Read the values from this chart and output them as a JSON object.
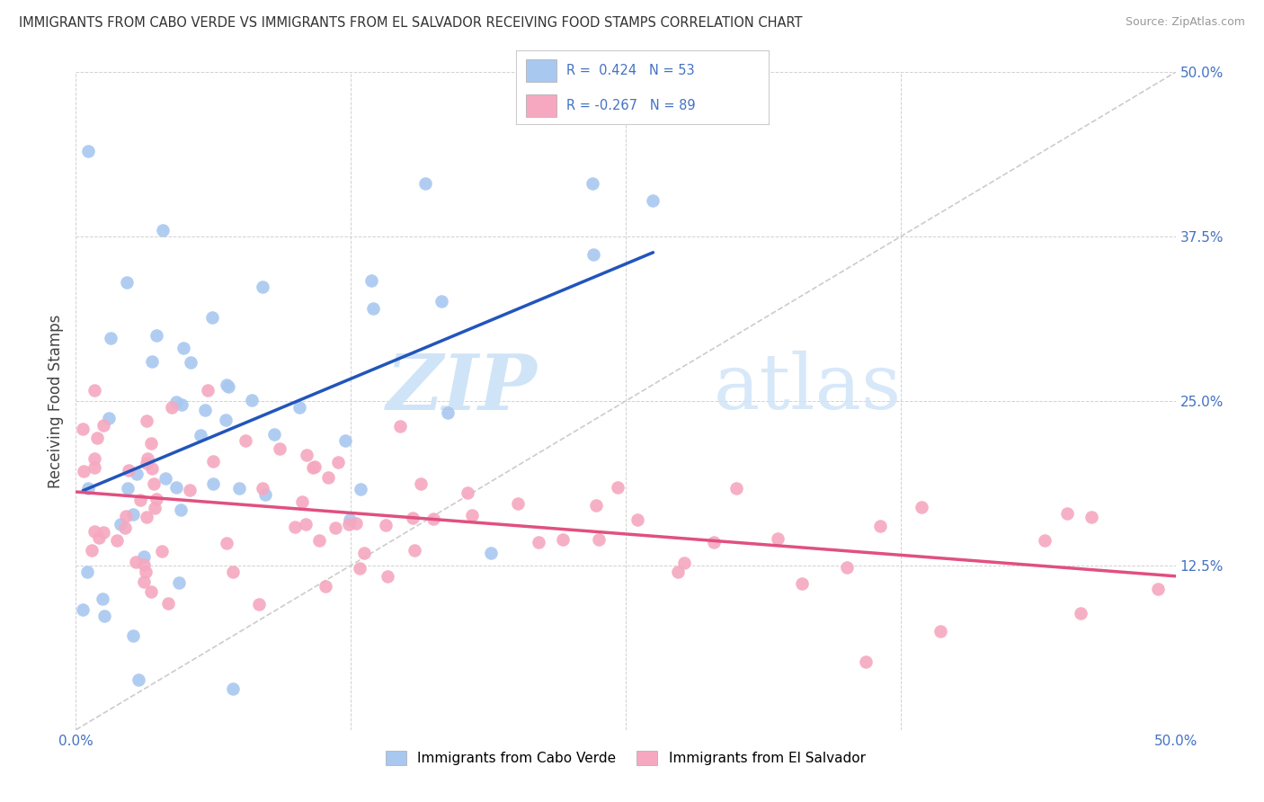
{
  "title": "IMMIGRANTS FROM CABO VERDE VS IMMIGRANTS FROM EL SALVADOR RECEIVING FOOD STAMPS CORRELATION CHART",
  "source": "Source: ZipAtlas.com",
  "ylabel": "Receiving Food Stamps",
  "xlim": [
    0.0,
    0.5
  ],
  "ylim": [
    0.0,
    0.5
  ],
  "cabo_verde_color": "#A8C8F0",
  "el_salvador_color": "#F5A8C0",
  "cabo_verde_R": 0.424,
  "cabo_verde_N": 53,
  "el_salvador_R": -0.267,
  "el_salvador_N": 89,
  "cabo_verde_line_color": "#2255BB",
  "el_salvador_line_color": "#E05080",
  "diagonal_color": "#CCCCCC",
  "legend_label_1": "Immigrants from Cabo Verde",
  "legend_label_2": "Immigrants from El Salvador",
  "watermark_zip_color": "#C8D8F0",
  "watermark_atlas_color": "#C8D8F0",
  "tick_color": "#4472C4",
  "grid_color": "#CCCCCC"
}
